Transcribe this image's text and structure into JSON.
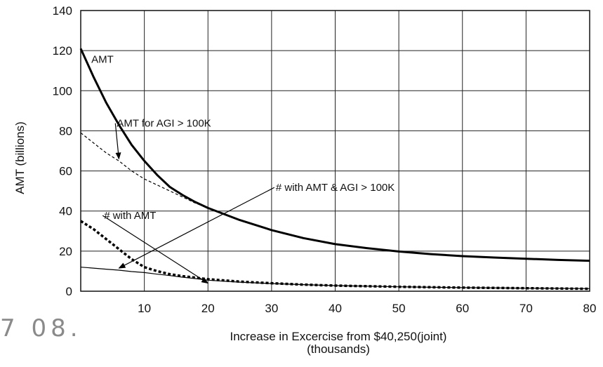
{
  "chart_data": {
    "type": "line",
    "title": "",
    "xlabel": "Increase in Excercise from $40,250(joint)",
    "xlabel_sub": "(thousands)",
    "ylabel": "AMT (billions)",
    "xlim": [
      0,
      80
    ],
    "ylim": [
      0,
      140
    ],
    "x_ticks": [
      "10",
      "20",
      "30",
      "40",
      "50",
      "60",
      "70",
      "80"
    ],
    "y_ticks": [
      "0",
      "20",
      "40",
      "60",
      "80",
      "100",
      "120",
      "140"
    ],
    "grid": true,
    "series": [
      {
        "name": "AMT",
        "style": "solid-thick",
        "x": [
          0,
          2,
          4,
          6,
          8,
          10,
          12,
          14,
          16,
          18,
          20,
          25,
          30,
          35,
          40,
          45,
          50,
          55,
          60,
          65,
          70,
          75,
          80
        ],
        "values": [
          121,
          107,
          94,
          83,
          73,
          65,
          58,
          52,
          48,
          44.5,
          41.5,
          35.5,
          30.5,
          26.5,
          23.5,
          21.5,
          19.8,
          18.5,
          17.5,
          16.8,
          16.2,
          15.6,
          15.2
        ]
      },
      {
        "name": "AMT for AGI > 100K",
        "style": "dashed-thin",
        "x": [
          0,
          2,
          4,
          6,
          8,
          10,
          12,
          14,
          16,
          18,
          20
        ],
        "values": [
          79,
          74,
          69,
          65,
          60,
          56,
          53,
          50,
          47,
          44,
          41.5
        ]
      },
      {
        "name": "# with AMT",
        "style": "dotted-thick",
        "x": [
          0,
          2,
          4,
          6,
          8,
          10,
          12,
          14,
          16,
          18,
          20,
          25,
          30,
          35,
          40,
          50,
          60,
          70,
          80
        ],
        "values": [
          35,
          31,
          26,
          21,
          16,
          12,
          10,
          8.5,
          7.5,
          6.8,
          6,
          4.8,
          4,
          3.3,
          2.8,
          2.2,
          1.8,
          1.5,
          1.2
        ]
      },
      {
        "name": "# with AMT & AGI > 100K",
        "style": "solid-thin",
        "x": [
          0,
          2,
          4,
          6,
          8,
          10,
          12,
          14,
          16,
          18,
          20,
          25,
          30,
          35,
          40,
          50,
          60,
          70,
          80
        ],
        "values": [
          12,
          11.5,
          11,
          10.5,
          9.8,
          9.3,
          8.5,
          7.8,
          7,
          6.3,
          5.5,
          4.5,
          3.8,
          3.3,
          2.8,
          2.2,
          1.8,
          1.5,
          1.3
        ]
      }
    ],
    "annotations": [
      {
        "text": "AMT",
        "x": 1,
        "y": 114,
        "arrow": false
      },
      {
        "text": "AMT for AGI > 100K",
        "x": 5,
        "y": 82,
        "arrow_to": [
          6,
          66
        ]
      },
      {
        "text": "# with AMT & AGI > 100K",
        "x": 30,
        "y": 50,
        "arrow_to": [
          6,
          11.5
        ]
      },
      {
        "text": "# with AMT",
        "x": 3,
        "y": 36,
        "arrow_to": [
          20,
          4
        ]
      }
    ]
  },
  "stamp_text": "7 08."
}
